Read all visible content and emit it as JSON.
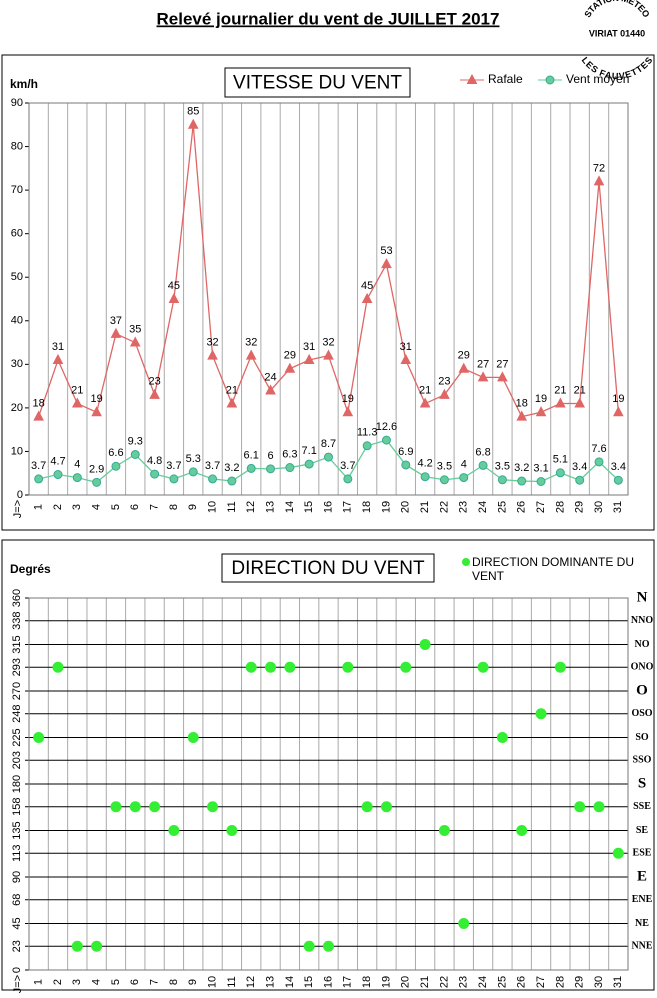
{
  "title": "Relevé journalier du vent de JUILLET 2017",
  "stamp": [
    "STATION METEO",
    "VIRIAT 01440",
    "LES FAUVETTES"
  ],
  "chart_data": [
    {
      "type": "line",
      "title": "VITESSE DU VENT",
      "y_label": "km/h",
      "x_label": "J=>",
      "categories": [
        "1",
        "2",
        "3",
        "4",
        "5",
        "6",
        "7",
        "8",
        "9",
        "10",
        "11",
        "12",
        "13",
        "14",
        "15",
        "16",
        "17",
        "18",
        "19",
        "20",
        "21",
        "22",
        "23",
        "24",
        "25",
        "26",
        "27",
        "28",
        "29",
        "30",
        "31"
      ],
      "ylim": [
        0,
        90
      ],
      "yticks": [
        0,
        10,
        20,
        30,
        40,
        50,
        60,
        70,
        80,
        90
      ],
      "series": [
        {
          "name": "Rafale",
          "color": "#e06666",
          "marker": "triangle",
          "values": [
            18,
            31,
            21,
            19,
            37,
            35,
            23,
            45,
            85,
            32,
            21,
            32,
            24,
            29,
            31,
            32,
            19,
            45,
            53,
            31,
            21,
            23,
            29,
            27,
            27,
            18,
            19,
            21,
            21,
            72,
            19
          ]
        },
        {
          "name": "Vent moyen",
          "color": "#66cc99",
          "marker": "circle",
          "values": [
            3.7,
            4.7,
            4,
            2.9,
            6.6,
            9.3,
            4.8,
            3.7,
            5.3,
            3.7,
            3.2,
            6.1,
            6,
            6.3,
            7.1,
            8.7,
            3.7,
            11.3,
            12.6,
            6.9,
            4.2,
            3.5,
            4,
            6.8,
            3.5,
            3.2,
            3.1,
            5.1,
            3.4,
            7.6,
            3.4
          ]
        }
      ]
    },
    {
      "type": "scatter",
      "title": "DIRECTION DU VENT",
      "y_label": "Degrés",
      "x_label": "J=>",
      "grid": true,
      "categories": [
        "1",
        "2",
        "3",
        "4",
        "5",
        "6",
        "7",
        "8",
        "9",
        "10",
        "11",
        "12",
        "13",
        "14",
        "15",
        "16",
        "17",
        "18",
        "19",
        "20",
        "21",
        "22",
        "23",
        "24",
        "25",
        "26",
        "27",
        "28",
        "29",
        "30",
        "31"
      ],
      "ylim": [
        0,
        360
      ],
      "yticks": [
        0,
        23,
        45,
        68,
        90,
        113,
        135,
        158,
        180,
        203,
        225,
        248,
        270,
        293,
        315,
        338,
        360
      ],
      "y2lim": [
        0,
        360
      ],
      "y2ticks": [
        {
          "value": 23,
          "label": "NNE"
        },
        {
          "value": 45,
          "label": "NE"
        },
        {
          "value": 68,
          "label": "ENE"
        },
        {
          "value": 90,
          "label": "E"
        },
        {
          "value": 113,
          "label": "ESE"
        },
        {
          "value": 135,
          "label": "SE"
        },
        {
          "value": 158,
          "label": "SSE"
        },
        {
          "value": 180,
          "label": "S"
        },
        {
          "value": 203,
          "label": "SSO"
        },
        {
          "value": 225,
          "label": "SO"
        },
        {
          "value": 248,
          "label": "OSO"
        },
        {
          "value": 270,
          "label": "O"
        },
        {
          "value": 293,
          "label": "ONO"
        },
        {
          "value": 315,
          "label": "NO"
        },
        {
          "value": 338,
          "label": "NNO"
        },
        {
          "value": 360,
          "label": "N"
        }
      ],
      "series": [
        {
          "name": "DIRECTION DOMINANTE DU VENT",
          "color": "#33ee33",
          "marker": "circle",
          "values": [
            225,
            293,
            23,
            23,
            158,
            158,
            158,
            135,
            225,
            158,
            135,
            293,
            293,
            293,
            23,
            23,
            293,
            158,
            158,
            293,
            315,
            135,
            45,
            293,
            225,
            135,
            248,
            293,
            158,
            158,
            113
          ]
        }
      ]
    }
  ]
}
